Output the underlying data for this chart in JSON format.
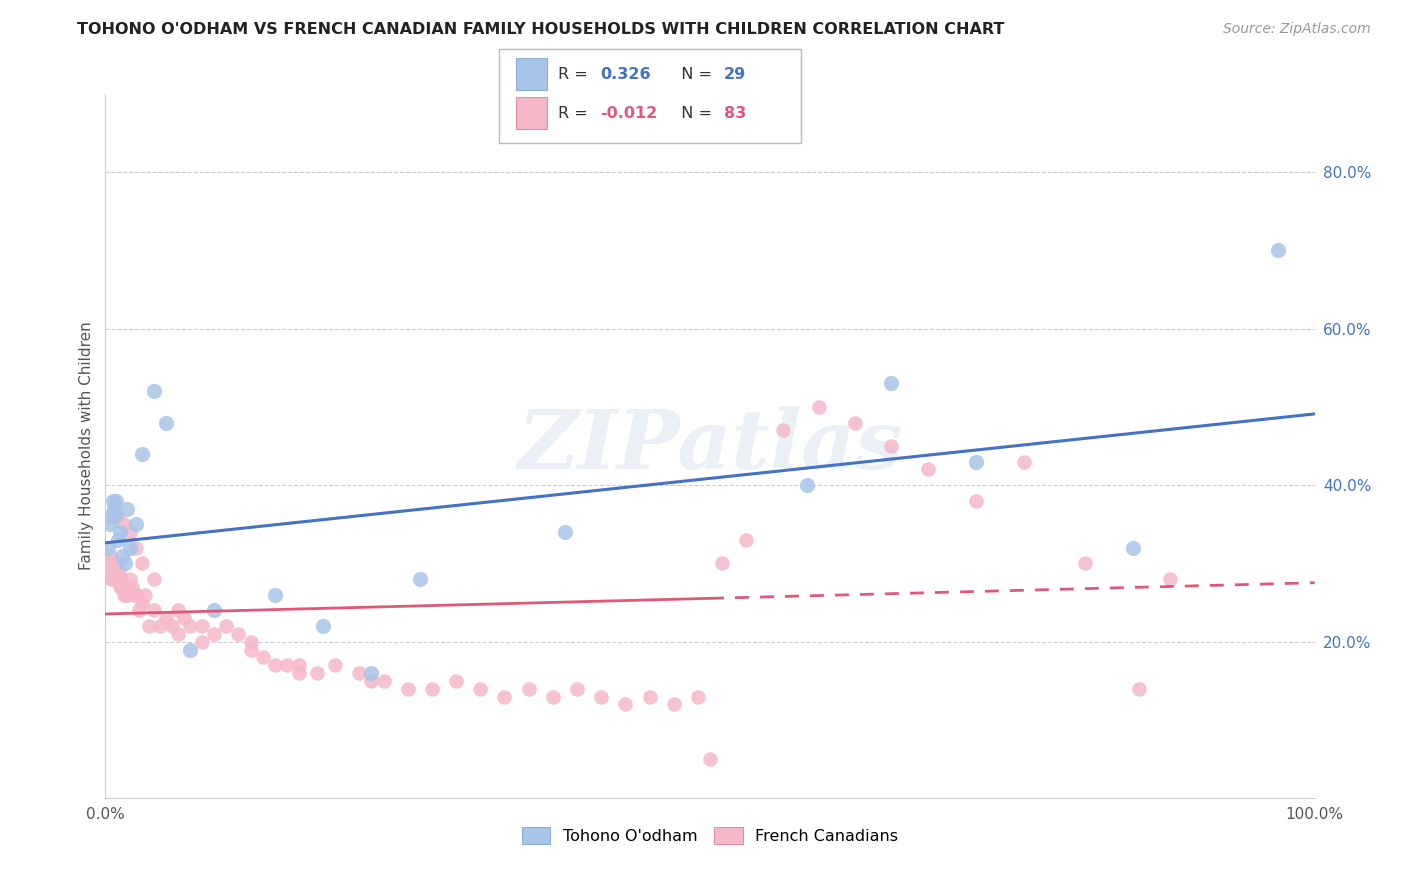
{
  "title": "TOHONO O'ODHAM VS FRENCH CANADIAN FAMILY HOUSEHOLDS WITH CHILDREN CORRELATION CHART",
  "source": "Source: ZipAtlas.com",
  "ylabel": "Family Households with Children",
  "xlim": [
    0,
    1.0
  ],
  "ylim": [
    0,
    0.9
  ],
  "xticks": [
    0.0,
    0.2,
    0.4,
    0.6,
    0.8,
    1.0
  ],
  "yticks": [
    0.2,
    0.4,
    0.6,
    0.8
  ],
  "xticklabels": [
    "0.0%",
    "",
    "",
    "",
    "",
    "100.0%"
  ],
  "yticklabels": [
    "20.0%",
    "40.0%",
    "60.0%",
    "80.0%"
  ],
  "legend_labels": [
    "Tohono O'odham",
    "French Canadians"
  ],
  "r_tohono": 0.326,
  "n_tohono": 29,
  "r_french": -0.012,
  "n_french": 83,
  "color_tohono": "#a8c4e8",
  "color_french": "#f5b8c8",
  "line_color_tohono": "#4472c4",
  "line_color_french": "#e05878",
  "watermark": "ZIPatlas",
  "tohono_x": [
    0.002,
    0.004,
    0.005,
    0.006,
    0.007,
    0.008,
    0.009,
    0.01,
    0.012,
    0.014,
    0.016,
    0.018,
    0.02,
    0.025,
    0.03,
    0.04,
    0.05,
    0.07,
    0.09,
    0.14,
    0.18,
    0.22,
    0.26,
    0.38,
    0.58,
    0.65,
    0.72,
    0.85,
    0.97
  ],
  "tohono_y": [
    0.32,
    0.35,
    0.36,
    0.38,
    0.37,
    0.36,
    0.38,
    0.33,
    0.34,
    0.31,
    0.3,
    0.37,
    0.32,
    0.35,
    0.44,
    0.52,
    0.48,
    0.19,
    0.24,
    0.26,
    0.22,
    0.16,
    0.28,
    0.34,
    0.4,
    0.53,
    0.43,
    0.32,
    0.7
  ],
  "french_x": [
    0.002,
    0.003,
    0.004,
    0.005,
    0.006,
    0.007,
    0.008,
    0.009,
    0.01,
    0.011,
    0.012,
    0.013,
    0.014,
    0.015,
    0.016,
    0.017,
    0.018,
    0.019,
    0.02,
    0.022,
    0.024,
    0.026,
    0.028,
    0.03,
    0.033,
    0.036,
    0.04,
    0.045,
    0.05,
    0.055,
    0.06,
    0.065,
    0.07,
    0.08,
    0.09,
    0.1,
    0.11,
    0.12,
    0.13,
    0.14,
    0.15,
    0.16,
    0.175,
    0.19,
    0.21,
    0.23,
    0.25,
    0.27,
    0.29,
    0.31,
    0.33,
    0.35,
    0.37,
    0.39,
    0.41,
    0.43,
    0.45,
    0.47,
    0.49,
    0.51,
    0.53,
    0.56,
    0.59,
    0.62,
    0.65,
    0.68,
    0.72,
    0.76,
    0.81,
    0.855,
    0.01,
    0.015,
    0.02,
    0.025,
    0.03,
    0.04,
    0.06,
    0.08,
    0.12,
    0.16,
    0.22,
    0.5,
    0.88
  ],
  "french_y": [
    0.3,
    0.29,
    0.31,
    0.28,
    0.3,
    0.28,
    0.29,
    0.3,
    0.28,
    0.29,
    0.27,
    0.28,
    0.27,
    0.26,
    0.27,
    0.26,
    0.26,
    0.27,
    0.28,
    0.27,
    0.26,
    0.26,
    0.24,
    0.25,
    0.26,
    0.22,
    0.24,
    0.22,
    0.23,
    0.22,
    0.21,
    0.23,
    0.22,
    0.2,
    0.21,
    0.22,
    0.21,
    0.19,
    0.18,
    0.17,
    0.17,
    0.16,
    0.16,
    0.17,
    0.16,
    0.15,
    0.14,
    0.14,
    0.15,
    0.14,
    0.13,
    0.14,
    0.13,
    0.14,
    0.13,
    0.12,
    0.13,
    0.12,
    0.13,
    0.3,
    0.33,
    0.47,
    0.5,
    0.48,
    0.45,
    0.42,
    0.38,
    0.43,
    0.3,
    0.14,
    0.36,
    0.35,
    0.34,
    0.32,
    0.3,
    0.28,
    0.24,
    0.22,
    0.2,
    0.17,
    0.15,
    0.05,
    0.28
  ]
}
